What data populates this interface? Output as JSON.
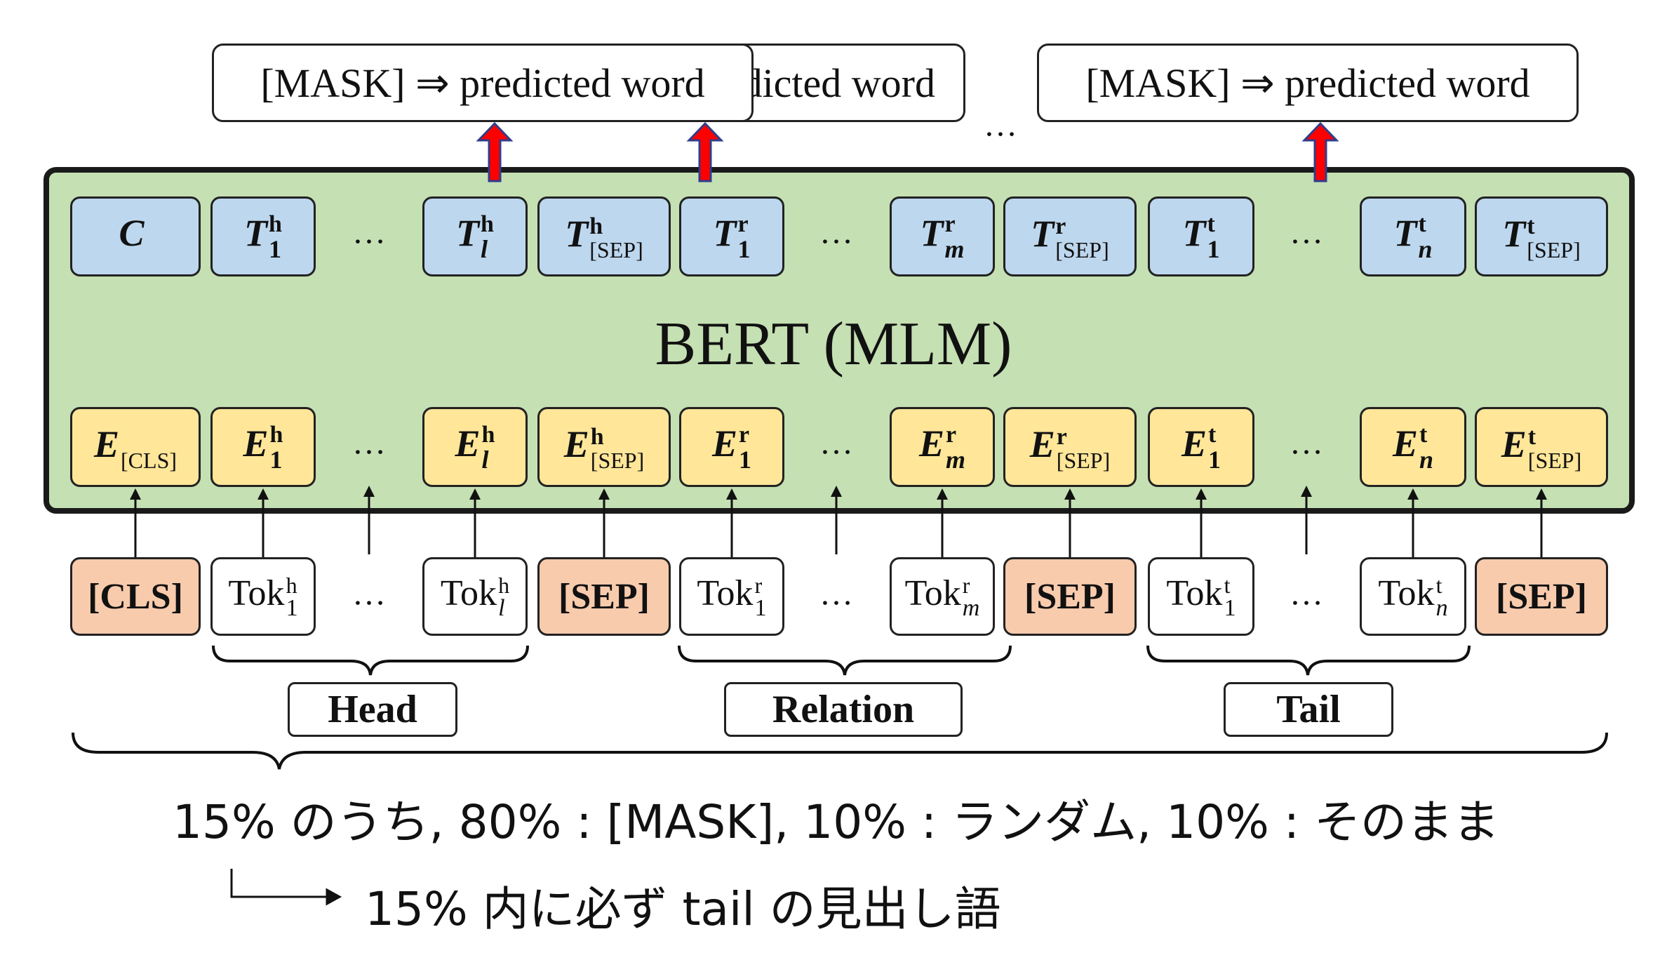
{
  "predicted_boxes": [
    {
      "label": "[MASK] ⇒ predicted word"
    },
    {
      "label": "[MASK] ⇒ predicted word"
    },
    {
      "label": "[MASK] ⇒ predicted word"
    }
  ],
  "ellipsis": "…",
  "model_label": "BERT (MLM)",
  "output_row": [
    {
      "base": "C",
      "sup": "",
      "sub": ""
    },
    {
      "base": "T",
      "sup": "h",
      "sub": "1"
    },
    {
      "base": "T",
      "sup": "h",
      "sub": "l"
    },
    {
      "base": "T",
      "sup": "h",
      "sub": "[SEP]"
    },
    {
      "base": "T",
      "sup": "r",
      "sub": "1"
    },
    {
      "base": "T",
      "sup": "r",
      "sub": "m"
    },
    {
      "base": "T",
      "sup": "r",
      "sub": "[SEP]"
    },
    {
      "base": "T",
      "sup": "t",
      "sub": "1"
    },
    {
      "base": "T",
      "sup": "t",
      "sub": "n"
    },
    {
      "base": "T",
      "sup": "t",
      "sub": "[SEP]"
    }
  ],
  "embedding_row": [
    {
      "base": "E",
      "sup": "",
      "sub": "[CLS]"
    },
    {
      "base": "E",
      "sup": "h",
      "sub": "1"
    },
    {
      "base": "E",
      "sup": "h",
      "sub": "l"
    },
    {
      "base": "E",
      "sup": "h",
      "sub": "[SEP]"
    },
    {
      "base": "E",
      "sup": "r",
      "sub": "1"
    },
    {
      "base": "E",
      "sup": "r",
      "sub": "m"
    },
    {
      "base": "E",
      "sup": "r",
      "sub": "[SEP]"
    },
    {
      "base": "E",
      "sup": "t",
      "sub": "1"
    },
    {
      "base": "E",
      "sup": "t",
      "sub": "n"
    },
    {
      "base": "E",
      "sup": "t",
      "sub": "[SEP]"
    }
  ],
  "token_row": [
    {
      "kind": "special",
      "text": "[CLS]"
    },
    {
      "kind": "tok",
      "base": "Tok",
      "sup": "h",
      "sub": "1"
    },
    {
      "kind": "tok",
      "base": "Tok",
      "sup": "h",
      "sub": "l"
    },
    {
      "kind": "special",
      "text": "[SEP]"
    },
    {
      "kind": "tok",
      "base": "Tok",
      "sup": "r",
      "sub": "1"
    },
    {
      "kind": "tok",
      "base": "Tok",
      "sup": "r",
      "sub": "m"
    },
    {
      "kind": "special",
      "text": "[SEP]"
    },
    {
      "kind": "tok",
      "base": "Tok",
      "sup": "t",
      "sub": "1"
    },
    {
      "kind": "tok",
      "base": "Tok",
      "sup": "t",
      "sub": "n"
    },
    {
      "kind": "special",
      "text": "[SEP]"
    }
  ],
  "segments": {
    "head": "Head",
    "relation": "Relation",
    "tail": "Tail"
  },
  "notes": {
    "line1": "15% のうち, 80% : [MASK], 10% : ランダム, 10% : そのまま",
    "line2": "15% 内に必ず tail の見出し語"
  },
  "colors": {
    "bert_fill": "#c5e0b3",
    "output_fill": "#bdd7ee",
    "embedding_fill": "#ffe699",
    "special_fill": "#f8cbad",
    "arrow_red": "#ff0000"
  }
}
